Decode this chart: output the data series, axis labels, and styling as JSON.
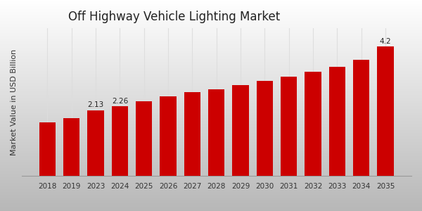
{
  "title": "Off Highway Vehicle Lighting Market",
  "ylabel": "Market Value in USD Billion",
  "categories": [
    "2018",
    "2019",
    "2023",
    "2024",
    "2025",
    "2026",
    "2027",
    "2028",
    "2029",
    "2030",
    "2031",
    "2032",
    "2033",
    "2034",
    "2035"
  ],
  "values": [
    1.75,
    1.88,
    2.13,
    2.26,
    2.42,
    2.58,
    2.72,
    2.82,
    2.95,
    3.08,
    3.22,
    3.38,
    3.55,
    3.78,
    4.2
  ],
  "bar_color": "#cc0000",
  "bar_labels": {
    "2023": "2.13",
    "2024": "2.26",
    "2035": "4.2"
  },
  "ylim": [
    0,
    4.8
  ],
  "bg_top": "#f0f0f0",
  "bg_bottom": "#c8c8c8",
  "title_fontsize": 12,
  "label_fontsize": 7.5,
  "tick_fontsize": 7.5,
  "ylabel_fontsize": 8,
  "red_stripe_color": "#cc0000",
  "grid_color": "#ffffff",
  "vline_color": "#dddddd"
}
